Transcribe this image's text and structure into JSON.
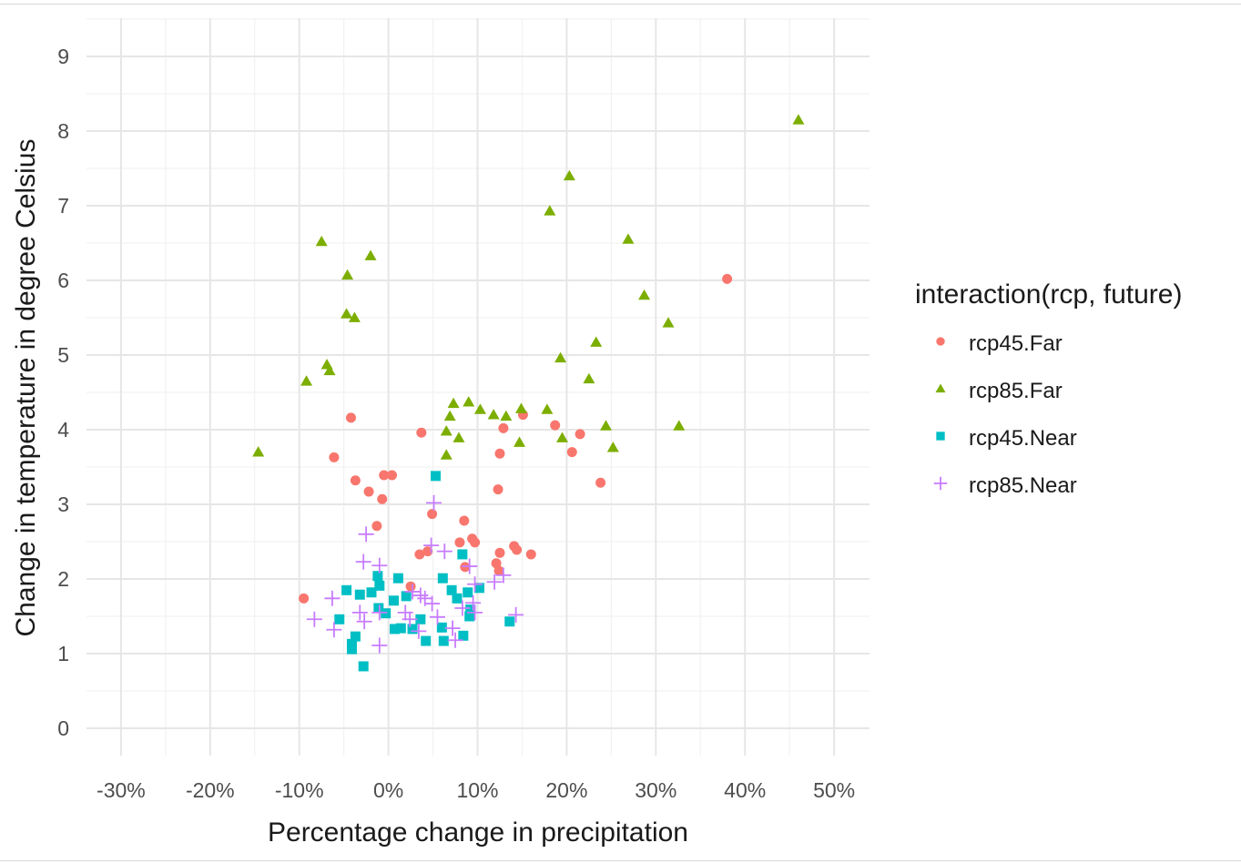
{
  "chart_data": {
    "type": "scatter",
    "title": "",
    "xlabel": "Percentage change in precipitation",
    "ylabel": "Change in temperature in degree Celsius",
    "xlim": [
      -35,
      54
    ],
    "ylim": [
      -0.35,
      9.5
    ],
    "x_ticks": [
      -30,
      -20,
      -10,
      0,
      10,
      20,
      30,
      40,
      50
    ],
    "x_tick_labels": [
      "-30%",
      "-20%",
      "-10%",
      "0%",
      "10%",
      "20%",
      "30%",
      "40%",
      "50%"
    ],
    "y_ticks": [
      0,
      1,
      2,
      3,
      4,
      5,
      6,
      7,
      8,
      9
    ],
    "y_tick_labels": [
      "0",
      "1",
      "2",
      "3",
      "4",
      "5",
      "6",
      "7",
      "8",
      "9"
    ],
    "grid": true,
    "legend": {
      "title": "interaction(rcp, future)",
      "placement": "right"
    },
    "series": [
      {
        "name": "rcp45.Far",
        "color": "#F8766D",
        "shape": "circle",
        "points": [
          [
            -9.5,
            1.74
          ],
          [
            -4.2,
            4.16
          ],
          [
            -6.1,
            3.63
          ],
          [
            -3.7,
            3.32
          ],
          [
            -2.2,
            3.17
          ],
          [
            -0.7,
            3.07
          ],
          [
            -1.3,
            2.71
          ],
          [
            -0.5,
            3.39
          ],
          [
            0.4,
            3.39
          ],
          [
            3.7,
            3.96
          ],
          [
            3.5,
            2.33
          ],
          [
            4.4,
            2.37
          ],
          [
            4.9,
            2.87
          ],
          [
            2.5,
            1.9
          ],
          [
            8.5,
            2.78
          ],
          [
            8.0,
            2.49
          ],
          [
            8.6,
            2.16
          ],
          [
            9.4,
            2.54
          ],
          [
            9.7,
            2.49
          ],
          [
            12.9,
            4.02
          ],
          [
            12.5,
            3.68
          ],
          [
            12.3,
            3.2
          ],
          [
            12.5,
            2.35
          ],
          [
            12.1,
            2.21
          ],
          [
            14.1,
            2.44
          ],
          [
            14.4,
            2.39
          ],
          [
            16.0,
            2.33
          ],
          [
            15.1,
            4.2
          ],
          [
            18.7,
            4.06
          ],
          [
            21.5,
            3.94
          ],
          [
            20.6,
            3.7
          ],
          [
            23.8,
            3.29
          ],
          [
            38.0,
            6.02
          ],
          [
            12.4,
            2.11
          ]
        ]
      },
      {
        "name": "rcp85.Far",
        "color": "#7CAE00",
        "shape": "triangle",
        "points": [
          [
            -14.6,
            3.7
          ],
          [
            -9.2,
            4.65
          ],
          [
            -7.5,
            6.52
          ],
          [
            -6.9,
            4.87
          ],
          [
            -6.6,
            4.79
          ],
          [
            -4.6,
            6.07
          ],
          [
            -4.7,
            5.55
          ],
          [
            -3.8,
            5.5
          ],
          [
            -2.0,
            6.33
          ],
          [
            6.5,
            3.66
          ],
          [
            6.5,
            3.98
          ],
          [
            6.9,
            4.18
          ],
          [
            7.3,
            4.35
          ],
          [
            7.9,
            3.89
          ],
          [
            9.0,
            4.37
          ],
          [
            10.3,
            4.27
          ],
          [
            11.8,
            4.2
          ],
          [
            13.2,
            4.18
          ],
          [
            14.7,
            3.83
          ],
          [
            14.9,
            4.28
          ],
          [
            17.8,
            4.27
          ],
          [
            18.1,
            6.93
          ],
          [
            19.3,
            4.96
          ],
          [
            19.5,
            3.89
          ],
          [
            20.3,
            7.4
          ],
          [
            22.5,
            4.68
          ],
          [
            23.3,
            5.17
          ],
          [
            24.4,
            4.05
          ],
          [
            25.2,
            3.76
          ],
          [
            26.9,
            6.55
          ],
          [
            28.7,
            5.8
          ],
          [
            31.4,
            5.43
          ],
          [
            32.6,
            4.05
          ],
          [
            46.0,
            8.15
          ]
        ]
      },
      {
        "name": "rcp45.Near",
        "color": "#00BFC4",
        "shape": "square",
        "points": [
          [
            5.3,
            3.38
          ],
          [
            8.3,
            2.33
          ],
          [
            -1.2,
            2.04
          ],
          [
            1.1,
            2.01
          ],
          [
            6.1,
            2.01
          ],
          [
            -4.7,
            1.85
          ],
          [
            -3.2,
            1.79
          ],
          [
            -1.9,
            1.82
          ],
          [
            -1.0,
            1.91
          ],
          [
            7.1,
            1.85
          ],
          [
            7.7,
            1.74
          ],
          [
            8.9,
            1.82
          ],
          [
            10.2,
            1.88
          ],
          [
            2.0,
            1.77
          ],
          [
            0.6,
            1.71
          ],
          [
            -1.1,
            1.61
          ],
          [
            -0.3,
            1.54
          ],
          [
            -5.5,
            1.46
          ],
          [
            3.6,
            1.46
          ],
          [
            9.1,
            1.5
          ],
          [
            0.7,
            1.33
          ],
          [
            1.4,
            1.34
          ],
          [
            2.7,
            1.33
          ],
          [
            6.0,
            1.35
          ],
          [
            13.6,
            1.43
          ],
          [
            -3.7,
            1.23
          ],
          [
            -4.1,
            1.13
          ],
          [
            -4.1,
            1.06
          ],
          [
            4.2,
            1.17
          ],
          [
            6.2,
            1.17
          ],
          [
            8.4,
            1.24
          ],
          [
            -2.8,
            0.83
          ],
          [
            9.2,
            1.59
          ]
        ]
      },
      {
        "name": "rcp85.Near",
        "color": "#C77CFF",
        "shape": "cross",
        "points": [
          [
            5.1,
            3.02
          ],
          [
            -2.5,
            2.6
          ],
          [
            4.8,
            2.45
          ],
          [
            6.3,
            2.37
          ],
          [
            -2.8,
            2.23
          ],
          [
            -1.0,
            2.18
          ],
          [
            9.1,
            2.17
          ],
          [
            11.9,
            1.96
          ],
          [
            12.9,
            2.05
          ],
          [
            9.7,
            1.93
          ],
          [
            -6.3,
            1.74
          ],
          [
            2.7,
            1.83
          ],
          [
            3.6,
            1.78
          ],
          [
            4.9,
            1.67
          ],
          [
            4.1,
            1.74
          ],
          [
            8.3,
            1.61
          ],
          [
            9.5,
            1.68
          ],
          [
            -3.2,
            1.55
          ],
          [
            -1.0,
            1.55
          ],
          [
            1.9,
            1.55
          ],
          [
            14.3,
            1.52
          ],
          [
            9.7,
            1.55
          ],
          [
            -8.3,
            1.46
          ],
          [
            -2.7,
            1.43
          ],
          [
            2.4,
            1.46
          ],
          [
            5.5,
            1.49
          ],
          [
            -6.1,
            1.32
          ],
          [
            7.2,
            1.34
          ],
          [
            3.4,
            1.3
          ],
          [
            7.5,
            1.18
          ],
          [
            -1.0,
            1.11
          ]
        ]
      }
    ]
  }
}
